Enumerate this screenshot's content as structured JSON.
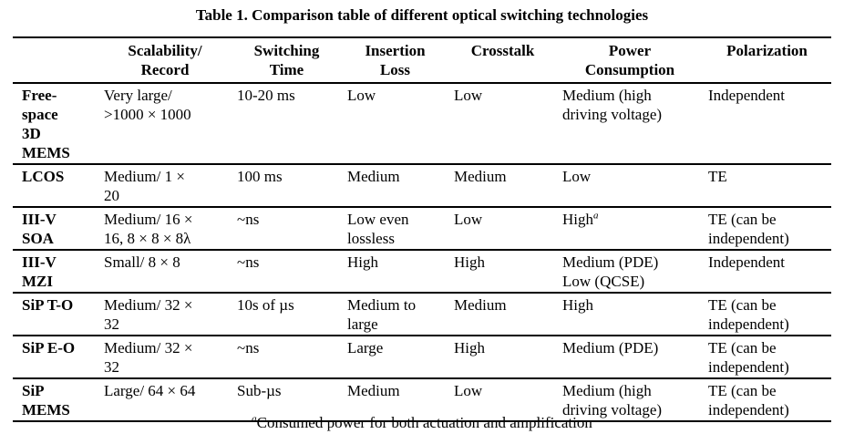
{
  "caption": "Table 1. Comparison table of different optical switching technologies",
  "headers": [
    "",
    "Scalability/\nRecord",
    "Switching\nTime",
    "Insertion\nLoss",
    "Crosstalk",
    "Power\nConsumption",
    "Polarization"
  ],
  "rows": [
    {
      "tech": "Free-\nspace\n3D\nMEMS",
      "scalability": "Very large/\n>1000 × 1000",
      "switching_time": "10-20 ms",
      "insertion_loss": "Low",
      "crosstalk": "Low",
      "power": "Medium (high\ndriving voltage)",
      "power_sup": "",
      "polarization": "Independent"
    },
    {
      "tech": "LCOS",
      "scalability": "Medium/ 1 ×\n20",
      "switching_time": "100 ms",
      "insertion_loss": "Medium",
      "crosstalk": "Medium",
      "power": "Low",
      "power_sup": "",
      "polarization": "TE"
    },
    {
      "tech": "III-V\nSOA",
      "scalability": "Medium/ 16 ×\n16, 8 × 8 × 8λ",
      "switching_time": "~ns",
      "insertion_loss": "Low even\nlossless",
      "crosstalk": "Low",
      "power": "High",
      "power_sup": "a",
      "polarization": "TE (can be\nindependent)"
    },
    {
      "tech": "III-V\nMZI",
      "scalability": "Small/ 8 × 8",
      "switching_time": "~ns",
      "insertion_loss": "High",
      "crosstalk": "High",
      "power": "Medium (PDE)\nLow (QCSE)",
      "power_sup": "",
      "polarization": "Independent"
    },
    {
      "tech": "SiP T-O",
      "scalability": "Medium/ 32 ×\n32",
      "switching_time": "10s of µs",
      "insertion_loss": "Medium to\nlarge",
      "crosstalk": "Medium",
      "power": "High",
      "power_sup": "",
      "polarization": "TE (can be\nindependent)"
    },
    {
      "tech": "SiP E-O",
      "scalability": "Medium/ 32 ×\n32",
      "switching_time": "~ns",
      "insertion_loss": "Large",
      "crosstalk": "High",
      "power": "Medium (PDE)",
      "power_sup": "",
      "polarization": "TE (can be\nindependent)"
    },
    {
      "tech": "SiP\nMEMS",
      "scalability": "Large/ 64 × 64",
      "switching_time": "Sub-µs",
      "insertion_loss": "Medium",
      "crosstalk": "Low",
      "power": "Medium (high\ndriving voltage)",
      "power_sup": "",
      "polarization": "TE (can be\nindependent)"
    }
  ],
  "footnote": {
    "marker": "a",
    "text": "Consumed power for both actuation and amplification"
  }
}
